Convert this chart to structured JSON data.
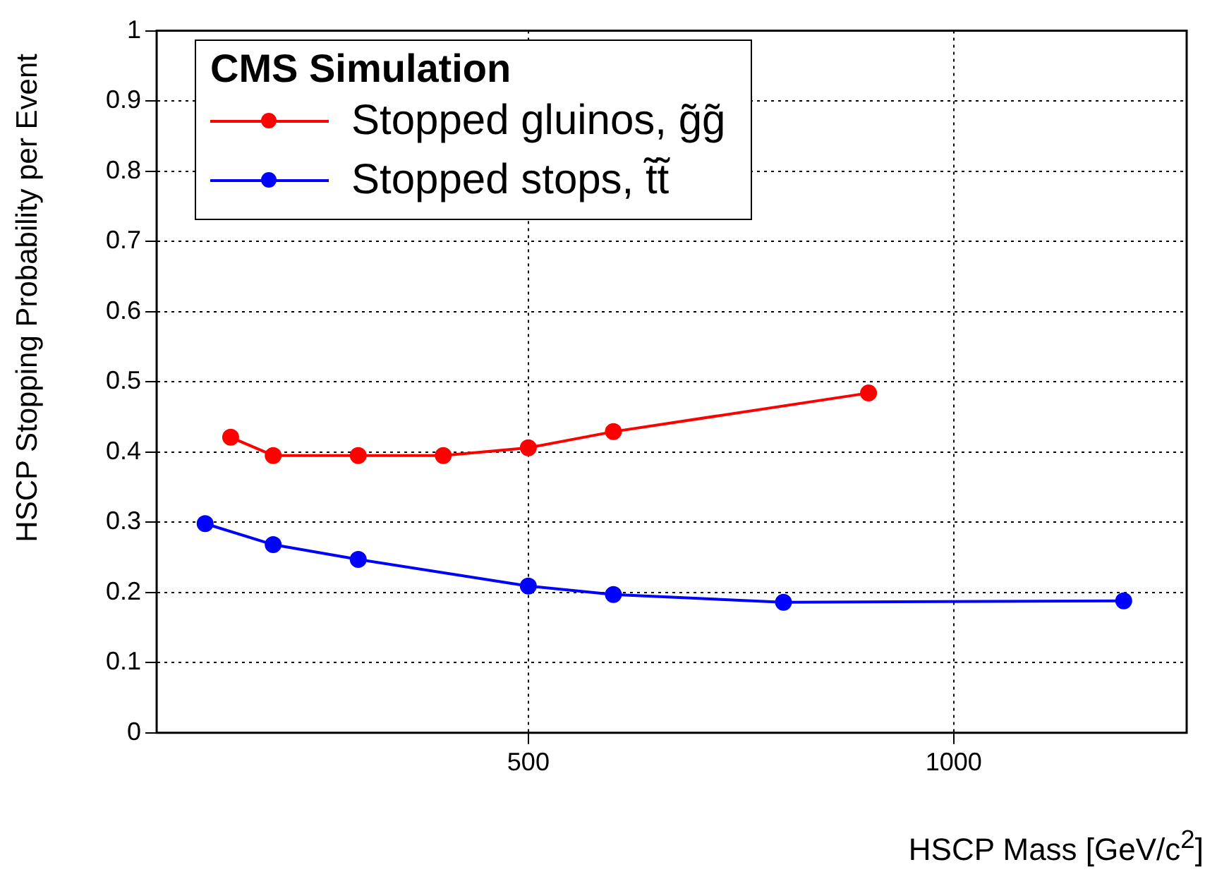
{
  "chart_data": {
    "type": "line",
    "legend_title": "CMS Simulation",
    "xlabel": "HSCP Mass [GeV/c$^{2}$]",
    "ylabel": "HSCP Stopping Probability per Event",
    "series": [
      {
        "name": "Stopped gluinos, g̃g̃",
        "color": "#ff0000",
        "x": [
          150,
          200,
          300,
          400,
          500,
          600,
          900
        ],
        "values": [
          0.421,
          0.395,
          0.395,
          0.395,
          0.406,
          0.429,
          0.484
        ]
      },
      {
        "name": "Stopped stops, t̃t̃",
        "color": "#0000ff",
        "x": [
          120,
          200,
          300,
          500,
          600,
          800,
          1200
        ],
        "values": [
          0.298,
          0.268,
          0.247,
          0.209,
          0.197,
          0.186,
          0.188
        ]
      }
    ],
    "xlim": [
      63,
      1274
    ],
    "xticks": [
      500,
      1000
    ],
    "ylim": [
      0,
      1
    ],
    "yticks": [
      0,
      0.1,
      0.2,
      0.3,
      0.4,
      0.5,
      0.6,
      0.7,
      0.8,
      0.9,
      1
    ],
    "grid": true,
    "legend": "top left",
    "marker": "circle",
    "line_style": "solid"
  }
}
